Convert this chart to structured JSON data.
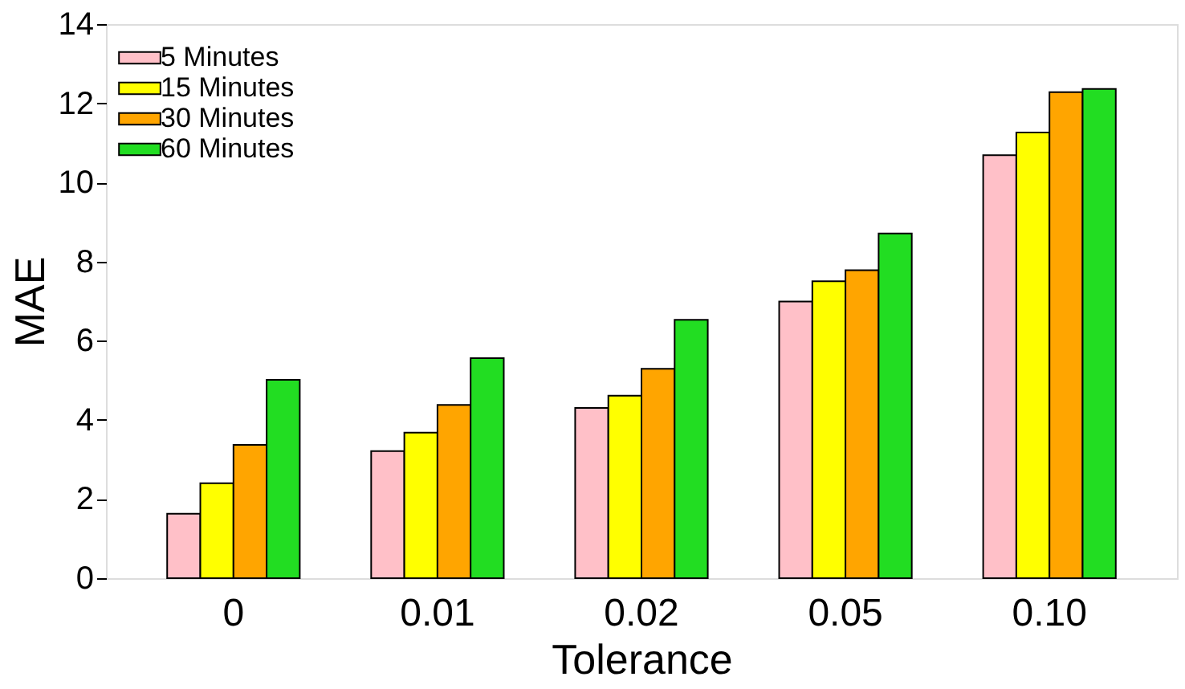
{
  "chart_data": {
    "type": "bar",
    "xlabel": "Tolerance",
    "ylabel": "MAE",
    "categories": [
      "0",
      "0.01",
      "0.02",
      "0.05",
      "0.10"
    ],
    "series": [
      {
        "name": "5 Minutes",
        "color": "#ffc0c8",
        "values": [
          1.63,
          3.21,
          4.3,
          6.99,
          10.69
        ]
      },
      {
        "name": "15 Minutes",
        "color": "#ffff00",
        "values": [
          2.4,
          3.68,
          4.61,
          7.5,
          11.26
        ]
      },
      {
        "name": "30 Minutes",
        "color": "#ffa500",
        "values": [
          3.37,
          4.38,
          5.29,
          7.78,
          12.28
        ]
      },
      {
        "name": "60 Minutes",
        "color": "#22dd22",
        "values": [
          5.01,
          5.56,
          6.53,
          8.71,
          12.36
        ]
      }
    ],
    "ylim": [
      0,
      14
    ],
    "yticks": [
      0,
      2,
      4,
      6,
      8,
      10,
      12,
      14
    ],
    "grid": false,
    "legend": "top left"
  }
}
